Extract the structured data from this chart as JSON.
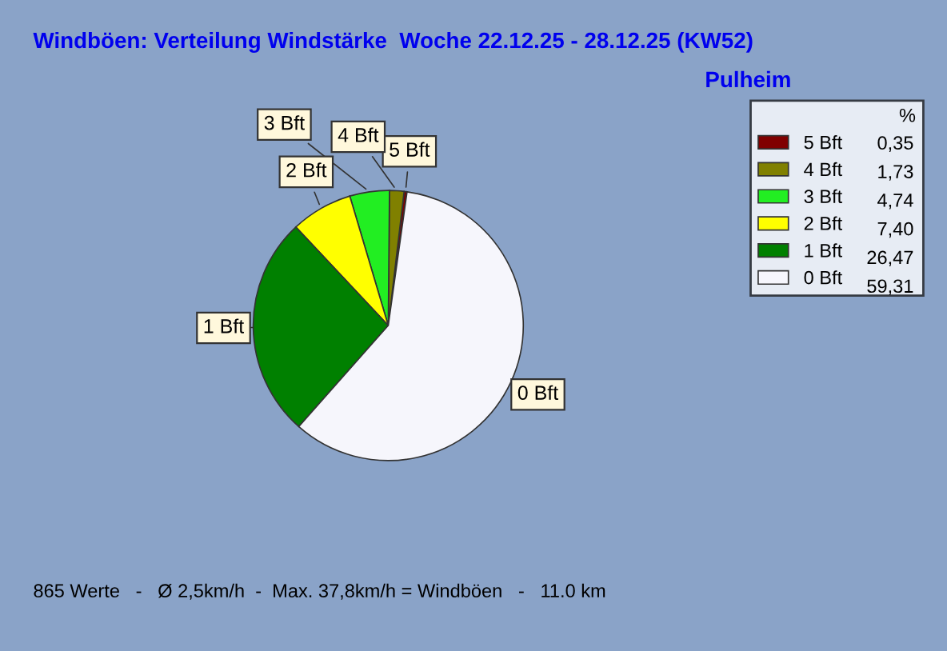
{
  "chart_data": {
    "type": "pie",
    "title": "Windböen: Verteilung Windstärke  Woche 22.12.25 - 28.12.25 (KW52)",
    "subtitle": "Pulheim",
    "categories": [
      "5 Bft",
      "4 Bft",
      "3 Bft",
      "2 Bft",
      "1 Bft",
      "0 Bft"
    ],
    "values": [
      0.35,
      1.73,
      4.74,
      7.4,
      26.47,
      59.31
    ],
    "value_labels": [
      "0,35",
      "1,73",
      "4,74",
      "7,40",
      "26,47",
      "59,31"
    ],
    "colors": [
      "#800000",
      "#808000",
      "#22ee22",
      "#ffff00",
      "#008000",
      "#f6f6fc"
    ],
    "legend": "top right",
    "legend_title": "%",
    "annotations": [
      "865 Werte   -   Ø 2,5km/h  -  Max. 37,8km/h = Windböen   -   11.0 km"
    ]
  }
}
